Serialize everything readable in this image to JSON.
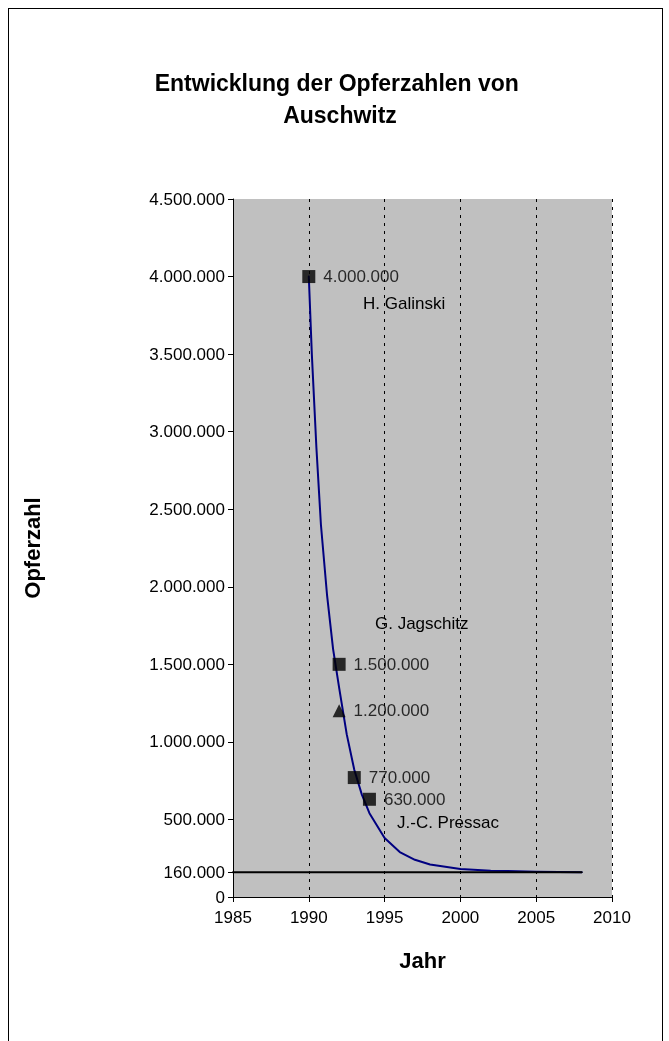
{
  "chart_data": {
    "type": "scatter",
    "title": "Entwicklung der Opferzahlen von Auschwitz",
    "xlabel": "Jahr",
    "ylabel": "Opferzahl",
    "xlim": [
      1985,
      2010
    ],
    "xticks": [
      1985,
      1990,
      1995,
      2000,
      2005,
      2010
    ],
    "ylim": [
      0,
      4500000
    ],
    "yticks": [
      0,
      {
        "value": 160000,
        "label": "160.000"
      },
      {
        "value": 500000,
        "label": "500.000"
      },
      {
        "value": 1000000,
        "label": "1.000.000"
      },
      {
        "value": 1500000,
        "label": "1.500.000"
      },
      {
        "value": 2000000,
        "label": "2.000.000"
      },
      {
        "value": 2500000,
        "label": "2.500.000"
      },
      {
        "value": 3000000,
        "label": "3.000.000"
      },
      {
        "value": 3500000,
        "label": "3.500.000"
      },
      {
        "value": 4000000,
        "label": "4.000.000"
      },
      {
        "value": 4500000,
        "label": "4.500.000"
      }
    ],
    "grid": "x",
    "series": [
      {
        "marker": "square",
        "color": "#000000",
        "x": [
          1990,
          1992,
          1993,
          1994
        ],
        "values": [
          4000000,
          1500000,
          770000,
          630000
        ],
        "value_labels": [
          "4.000.000",
          "1.500.000",
          "770.000",
          "630.000"
        ]
      },
      {
        "marker": "triangle",
        "color": "#000000",
        "x": [
          1992
        ],
        "values": [
          1200000
        ],
        "value_labels": [
          "1.200.000"
        ]
      },
      {
        "type": "line",
        "marker": "none",
        "line_style": "solid",
        "color": "#000080",
        "x": [
          1990,
          1990.2,
          1990.5,
          1990.8,
          1991.2,
          1991.6,
          1992,
          1992.5,
          1993,
          1993.5,
          1994,
          1995,
          1996,
          1997,
          1998,
          2000,
          2002,
          2005,
          2008
        ],
        "values": [
          4000000,
          3500000,
          2900000,
          2400000,
          1950000,
          1600000,
          1350000,
          1050000,
          820000,
          660000,
          540000,
          380000,
          290000,
          240000,
          210000,
          180000,
          170000,
          163000,
          160000
        ]
      },
      {
        "type": "line",
        "marker": "none",
        "line_style": "solid",
        "color": "#000000",
        "x": [
          1985,
          2008
        ],
        "values": [
          160000,
          160000
        ]
      }
    ],
    "annotations": [
      "H. Galinski",
      "G. Jagschitz",
      "J.-C. Pressac"
    ]
  }
}
